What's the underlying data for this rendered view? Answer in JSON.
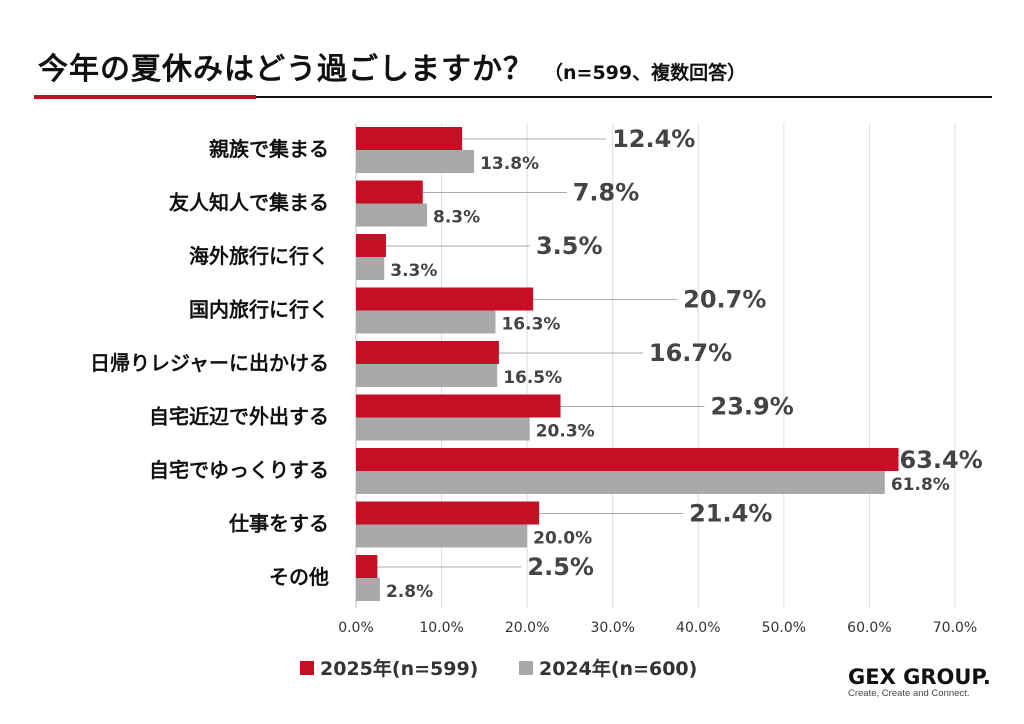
{
  "header": {
    "title": "今年の夏休みはどう過ごしますか？",
    "subtitle": "（n=599、複数回答）"
  },
  "colors": {
    "series_2025": "#c40f25",
    "series_2024": "#a9a9a9",
    "grid": "#dddddd",
    "label_text": "#444444"
  },
  "chart_data": {
    "type": "bar",
    "orientation": "horizontal",
    "categories": [
      "親族で集まる",
      "友人知人で集まる",
      "海外旅行に行く",
      "国内旅行に行く",
      "日帰りレジャーに出かける",
      "自宅近辺で外出する",
      "自宅でゆっくりする",
      "仕事をする",
      "その他"
    ],
    "series": [
      {
        "name": "2025年(n=599)",
        "values": [
          12.4,
          7.8,
          3.5,
          20.7,
          16.7,
          23.9,
          63.4,
          21.4,
          2.5
        ]
      },
      {
        "name": "2024年(n=600)",
        "values": [
          13.8,
          8.3,
          3.3,
          16.3,
          16.5,
          20.3,
          61.8,
          20.0,
          2.8
        ]
      }
    ],
    "value_labels": [
      [
        "12.4%",
        "7.8%",
        "3.5%",
        "20.7%",
        "16.7%",
        "23.9%",
        "63.4%",
        "21.4%",
        "2.5%"
      ],
      [
        "13.8%",
        "8.3%",
        "3.3%",
        "16.3%",
        "16.5%",
        "20.3%",
        "61.8%",
        "20.0%",
        "2.8%"
      ]
    ],
    "xlim": [
      0,
      70
    ],
    "xticks": [
      0,
      10,
      20,
      30,
      40,
      50,
      60,
      70
    ],
    "xtick_labels": [
      "0.0%",
      "10.0%",
      "20.0%",
      "30.0%",
      "40.0%",
      "50.0%",
      "60.0%",
      "70.0%"
    ],
    "grid": true,
    "legend_position": "bottom"
  },
  "legend": {
    "items": [
      "2025年(n=599)",
      "2024年(n=600)"
    ]
  },
  "logo": {
    "name": "GEX GROUP.",
    "tagline": "Create, Create and Connect."
  }
}
